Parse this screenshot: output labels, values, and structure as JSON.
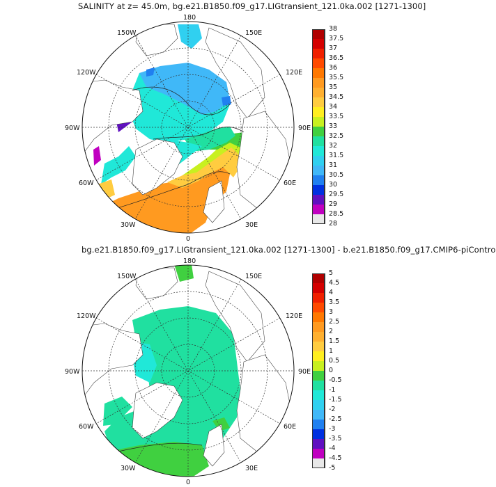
{
  "panels": [
    {
      "title": "SALINITY at z=  45.0m, bg.e21.B1850.f09_g17.LIGtransient_121.0ka.002 [1271-1300]",
      "lon_labels": {
        "n": "180",
        "nw": "150W",
        "ne": "150E",
        "wnw": "120W",
        "ene": "120E",
        "w": "90W",
        "e": "90E",
        "wsw": "60W",
        "ese": "60E",
        "sw": "30W",
        "se": "30E",
        "s": "0"
      },
      "colorbar": {
        "labels": [
          "38",
          "37.5",
          "37",
          "36.5",
          "36",
          "35.5",
          "35",
          "34.5",
          "34",
          "33.5",
          "33",
          "32.5",
          "32",
          "31.5",
          "31",
          "30.5",
          "30",
          "29.5",
          "29",
          "28.5",
          "28"
        ],
        "colors": [
          "#b00000",
          "#d40000",
          "#f02000",
          "#ff4a00",
          "#ff7800",
          "#ff9a20",
          "#ffb030",
          "#ffcc40",
          "#ffee20",
          "#c8f020",
          "#40d040",
          "#20e0a0",
          "#20e8d8",
          "#30d0f0",
          "#40b8f8",
          "#2080f0",
          "#0030e0",
          "#6010c0",
          "#c000c0",
          "#e8e8e8",
          "#707070"
        ]
      }
    },
    {
      "title": "bg.e21.B1850.f09_g17.LIGtransient_121.0ka.002 [1271-1300] - b.e21.B1850.f09_g17.CMIP6-piContro",
      "lon_labels": {
        "n": "180",
        "nw": "150W",
        "ne": "150E",
        "wnw": "120W",
        "ene": "120E",
        "w": "90W",
        "e": "90E",
        "wsw": "60W",
        "ese": "60E",
        "sw": "30W",
        "se": "30E",
        "s": "0"
      },
      "colorbar": {
        "labels": [
          "5",
          "4.5",
          "4",
          "3.5",
          "3",
          "2.5",
          "2",
          "1.5",
          "1",
          "0.5",
          "0",
          "-0.5",
          "-1",
          "-1.5",
          "-2",
          "-2.5",
          "-3",
          "-3.5",
          "-4",
          "-4.5",
          "-5"
        ],
        "colors": [
          "#b00000",
          "#d40000",
          "#f02000",
          "#ff4a00",
          "#ff7800",
          "#ff9a20",
          "#ffb030",
          "#ffcc40",
          "#ffee20",
          "#c8f020",
          "#40d040",
          "#20e0a0",
          "#20e8d8",
          "#30d0f0",
          "#40b8f8",
          "#2080f0",
          "#0030e0",
          "#6010c0",
          "#c000c0",
          "#e8e8e8",
          "#707070"
        ]
      }
    }
  ]
}
